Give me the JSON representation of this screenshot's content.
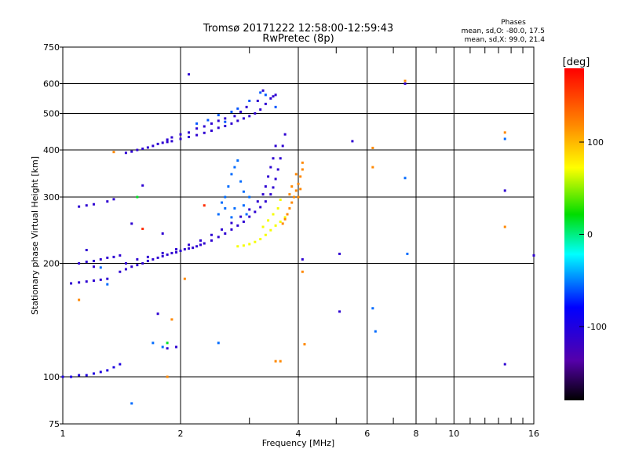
{
  "chart_data": {
    "type": "scatter",
    "title": "Tromsø 20171222 12:58:00-12:59:43",
    "subtitle": "RwPretec (8p)",
    "xlabel": "Frequency [MHz]",
    "ylabel": "Stationary phase Virtual Height [km]",
    "x_scale": "log",
    "y_scale": "log",
    "xlim": [
      1,
      16
    ],
    "ylim": [
      75,
      750
    ],
    "x_ticks": [
      1,
      2,
      4,
      6,
      8,
      10,
      16
    ],
    "y_ticks": [
      75,
      100,
      200,
      300,
      400,
      500,
      600,
      750
    ],
    "x_minor_ticks": [
      3,
      5,
      7,
      9,
      11,
      12,
      13,
      14,
      15
    ],
    "grid": true,
    "stats": {
      "heading": "Phases",
      "line_o": "mean, sd,O: -80.0, 17.5",
      "line_x": "mean, sd,X:  99.0, 21.4"
    },
    "colorbar": {
      "label": "[deg]",
      "range": [
        -180,
        180
      ],
      "ticks": [
        100,
        0,
        -100
      ]
    },
    "series": [
      {
        "trace": "upper-F-layer",
        "phase_deg": -110,
        "points": [
          [
            1.45,
            393
          ],
          [
            1.5,
            396
          ],
          [
            1.55,
            400
          ],
          [
            1.6,
            403
          ],
          [
            1.65,
            406
          ],
          [
            1.7,
            410
          ],
          [
            1.75,
            415
          ],
          [
            1.8,
            418
          ],
          [
            1.85,
            420
          ],
          [
            1.9,
            422
          ],
          [
            2.0,
            428
          ],
          [
            2.1,
            433
          ],
          [
            2.2,
            438
          ],
          [
            2.3,
            444
          ],
          [
            2.4,
            450
          ],
          [
            2.5,
            458
          ],
          [
            2.6,
            463
          ],
          [
            2.7,
            470
          ],
          [
            2.8,
            478
          ],
          [
            2.9,
            485
          ],
          [
            3.0,
            492
          ],
          [
            3.1,
            500
          ],
          [
            3.2,
            512
          ],
          [
            3.3,
            530
          ],
          [
            3.4,
            548
          ],
          [
            3.45,
            555
          ],
          [
            3.5,
            560
          ],
          [
            3.25,
            575
          ],
          [
            3.15,
            540
          ],
          [
            2.95,
            520
          ],
          [
            2.85,
            505
          ],
          [
            2.75,
            492
          ],
          [
            2.6,
            485
          ],
          [
            2.5,
            478
          ],
          [
            2.4,
            470
          ],
          [
            2.3,
            462
          ],
          [
            2.2,
            456
          ],
          [
            2.1,
            445
          ],
          [
            2.0,
            440
          ],
          [
            1.9,
            432
          ],
          [
            1.85,
            426
          ]
        ]
      },
      {
        "trace": "upper-F-layer-cyan",
        "phase_deg": -60,
        "points": [
          [
            2.2,
            470
          ],
          [
            2.35,
            480
          ],
          [
            2.5,
            495
          ],
          [
            2.7,
            505
          ],
          [
            2.8,
            515
          ],
          [
            3.0,
            540
          ],
          [
            3.2,
            568
          ],
          [
            3.3,
            560
          ],
          [
            3.5,
            520
          ],
          [
            2.6,
            475
          ]
        ]
      },
      {
        "trace": "lower-F-layer",
        "phase_deg": -110,
        "points": [
          [
            1.4,
            190
          ],
          [
            1.45,
            193
          ],
          [
            1.5,
            196
          ],
          [
            1.55,
            198
          ],
          [
            1.6,
            200
          ],
          [
            1.65,
            203
          ],
          [
            1.7,
            205
          ],
          [
            1.75,
            207
          ],
          [
            1.8,
            209
          ],
          [
            1.85,
            211
          ],
          [
            1.9,
            213
          ],
          [
            1.95,
            214
          ],
          [
            2.0,
            216
          ],
          [
            2.05,
            218
          ],
          [
            2.1,
            219
          ],
          [
            2.15,
            220
          ],
          [
            2.2,
            222
          ],
          [
            2.25,
            224
          ],
          [
            2.3,
            226
          ],
          [
            2.4,
            230
          ],
          [
            2.5,
            235
          ],
          [
            2.6,
            240
          ],
          [
            2.7,
            246
          ],
          [
            2.8,
            252
          ],
          [
            2.9,
            258
          ],
          [
            3.0,
            266
          ],
          [
            3.1,
            274
          ],
          [
            3.2,
            282
          ],
          [
            3.3,
            292
          ],
          [
            3.4,
            305
          ],
          [
            3.45,
            318
          ],
          [
            3.5,
            335
          ],
          [
            3.55,
            355
          ],
          [
            3.6,
            380
          ],
          [
            3.65,
            410
          ],
          [
            3.7,
            440
          ],
          [
            1.45,
            200
          ],
          [
            1.55,
            205
          ],
          [
            1.65,
            208
          ],
          [
            1.8,
            213
          ],
          [
            1.95,
            218
          ],
          [
            2.1,
            224
          ],
          [
            2.25,
            230
          ],
          [
            2.4,
            238
          ],
          [
            2.55,
            246
          ],
          [
            2.7,
            256
          ],
          [
            2.85,
            266
          ],
          [
            3.0,
            278
          ],
          [
            3.15,
            292
          ],
          [
            3.25,
            305
          ],
          [
            3.3,
            320
          ],
          [
            3.35,
            340
          ],
          [
            3.4,
            360
          ],
          [
            3.45,
            380
          ],
          [
            3.5,
            410
          ]
        ]
      },
      {
        "trace": "lower-F-layer-cyan",
        "phase_deg": -55,
        "points": [
          [
            2.6,
            300
          ],
          [
            2.65,
            320
          ],
          [
            2.7,
            345
          ],
          [
            2.75,
            360
          ],
          [
            2.8,
            375
          ],
          [
            2.85,
            330
          ],
          [
            2.9,
            310
          ],
          [
            3.0,
            300
          ],
          [
            2.75,
            280
          ],
          [
            2.7,
            265
          ],
          [
            2.9,
            285
          ],
          [
            2.95,
            270
          ],
          [
            2.6,
            280
          ],
          [
            2.5,
            270
          ],
          [
            2.55,
            290
          ]
        ]
      },
      {
        "trace": "o-trace-yellow",
        "phase_deg": 70,
        "points": [
          [
            2.8,
            222
          ],
          [
            2.9,
            223
          ],
          [
            3.0,
            225
          ],
          [
            3.1,
            228
          ],
          [
            3.2,
            232
          ],
          [
            3.3,
            238
          ],
          [
            3.4,
            245
          ],
          [
            3.5,
            252
          ],
          [
            3.6,
            258
          ],
          [
            3.7,
            265
          ],
          [
            3.25,
            250
          ],
          [
            3.35,
            260
          ],
          [
            3.45,
            270
          ],
          [
            3.55,
            280
          ],
          [
            3.6,
            295
          ]
        ]
      },
      {
        "trace": "o-trace-orange",
        "phase_deg": 120,
        "points": [
          [
            3.65,
            255
          ],
          [
            3.7,
            262
          ],
          [
            3.75,
            270
          ],
          [
            3.8,
            280
          ],
          [
            3.85,
            290
          ],
          [
            3.9,
            300
          ],
          [
            3.95,
            312
          ],
          [
            4.0,
            325
          ],
          [
            4.05,
            340
          ],
          [
            4.1,
            355
          ],
          [
            4.1,
            370
          ],
          [
            3.95,
            345
          ],
          [
            3.85,
            320
          ],
          [
            3.8,
            305
          ],
          [
            4.0,
            300
          ],
          [
            4.05,
            315
          ]
        ]
      },
      {
        "trace": "low-E-trace",
        "phase_deg": -110,
        "points": [
          [
            1.1,
            200
          ],
          [
            1.15,
            202
          ],
          [
            1.2,
            203
          ],
          [
            1.25,
            205
          ],
          [
            1.3,
            207
          ],
          [
            1.35,
            208
          ],
          [
            1.4,
            210
          ],
          [
            1.1,
            283
          ],
          [
            1.15,
            285
          ],
          [
            1.2,
            287
          ],
          [
            1.3,
            292
          ],
          [
            1.35,
            296
          ]
        ]
      },
      {
        "trace": "E-region",
        "phase_deg": -100,
        "points": [
          [
            1.0,
            100
          ],
          [
            1.05,
            100
          ],
          [
            1.1,
            101
          ],
          [
            1.15,
            101
          ],
          [
            1.2,
            102
          ],
          [
            1.25,
            103
          ],
          [
            1.3,
            104
          ],
          [
            1.35,
            106
          ],
          [
            1.4,
            108
          ]
        ]
      },
      {
        "trace": "sporadic-blue",
        "phase_deg": -110,
        "points": [
          [
            1.05,
            177
          ],
          [
            1.1,
            178
          ],
          [
            1.15,
            179
          ],
          [
            1.2,
            180
          ],
          [
            1.25,
            181
          ],
          [
            1.3,
            182
          ],
          [
            1.6,
            322
          ],
          [
            1.8,
            240
          ],
          [
            1.5,
            255
          ],
          [
            1.75,
            147
          ],
          [
            5.5,
            422
          ],
          [
            5.1,
            212
          ],
          [
            5.1,
            149
          ],
          [
            7.5,
            600
          ],
          [
            13.5,
            312
          ],
          [
            16,
            210
          ],
          [
            4.1,
            205
          ],
          [
            13.5,
            108
          ],
          [
            1.95,
            120
          ],
          [
            1.85,
            119
          ],
          [
            2.1,
            635
          ],
          [
            1.15,
            217
          ],
          [
            1.2,
            196
          ]
        ]
      },
      {
        "trace": "sporadic-cyan",
        "phase_deg": -55,
        "points": [
          [
            6.3,
            132
          ],
          [
            6.2,
            152
          ],
          [
            7.5,
            337
          ],
          [
            7.6,
            212
          ],
          [
            13.5,
            428
          ],
          [
            1.8,
            120
          ],
          [
            2.5,
            123
          ],
          [
            1.7,
            123
          ],
          [
            1.5,
            85
          ],
          [
            1.25,
            195
          ],
          [
            1.3,
            176
          ]
        ]
      },
      {
        "trace": "sporadic-orange",
        "phase_deg": 120,
        "points": [
          [
            1.35,
            395
          ],
          [
            6.2,
            360
          ],
          [
            6.2,
            405
          ],
          [
            7.5,
            610
          ],
          [
            13.5,
            445
          ],
          [
            13.5,
            250
          ],
          [
            2.05,
            182
          ],
          [
            4.1,
            190
          ],
          [
            1.1,
            160
          ],
          [
            1.85,
            100
          ],
          [
            3.6,
            110
          ],
          [
            4.15,
            122
          ],
          [
            3.5,
            110
          ],
          [
            1.9,
            142
          ]
        ]
      },
      {
        "trace": "sporadic-green",
        "phase_deg": 15,
        "points": [
          [
            1.55,
            300
          ],
          [
            1.85,
            123
          ]
        ]
      },
      {
        "trace": "sporadic-red",
        "phase_deg": 160,
        "points": [
          [
            2.3,
            285
          ],
          [
            1.6,
            247
          ]
        ]
      }
    ]
  }
}
